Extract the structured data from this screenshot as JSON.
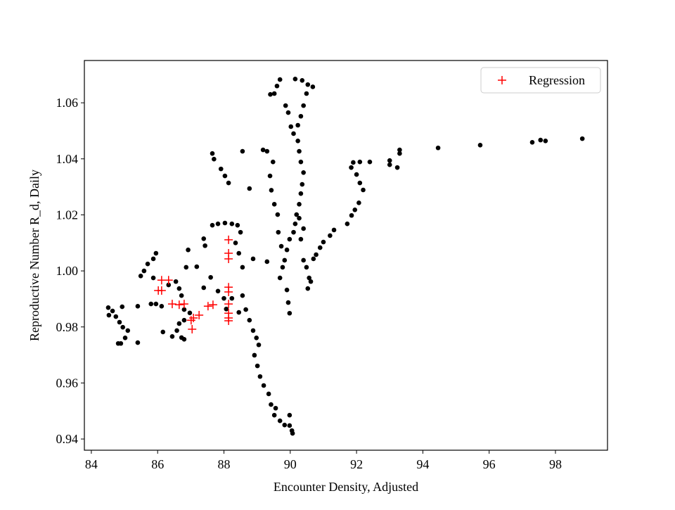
{
  "chart_data": {
    "type": "scatter",
    "xlabel": "Encounter Density, Adjusted",
    "ylabel": "Reproductive Number R_d, Daily",
    "xlim": [
      83.79,
      99.57
    ],
    "ylim": [
      0.936,
      1.0751
    ],
    "xticks": [
      84,
      86,
      88,
      90,
      92,
      94,
      96,
      98
    ],
    "yticks": [
      0.94,
      0.96,
      0.98,
      {
        "value": 1,
        "label": "1.00"
      },
      1.02,
      1.04,
      1.06
    ],
    "legend": "upper right",
    "series": [
      {
        "color": "#000000",
        "marker": "dot",
        "x": [
          98.81,
          97.7,
          97.55,
          97.3,
          95.73,
          94.46,
          93.3,
          93.3,
          93.23,
          93.0,
          93.0,
          92.4,
          92.1,
          91.9,
          91.84,
          92.0,
          92.1,
          92.2,
          92.07,
          91.95,
          91.85,
          91.72,
          91.32,
          91.2,
          91.0,
          90.9,
          90.78,
          90.7,
          89.69,
          89.6,
          89.52,
          89.4,
          89.86,
          89.94,
          90.02,
          90.1,
          90.23,
          90.27,
          90.32,
          90.4,
          90.36,
          90.32,
          90.27,
          90.19,
          90.15,
          90.1,
          90.15,
          90.36,
          90.53,
          90.68,
          90.49,
          90.4,
          90.32,
          90.23,
          89.98,
          89.9,
          89.83,
          89.77,
          89.69,
          89.9,
          89.94,
          89.98,
          89.62,
          89.52,
          89.43,
          89.39,
          89.48,
          89.3,
          89.18,
          89.64,
          89.73,
          90.4,
          90.49,
          90.57,
          90.53,
          90.62,
          90.32,
          90.4,
          90.27,
          88.56,
          88.66,
          88.77,
          88.88,
          88.98,
          89.05,
          88.92,
          89.01,
          89.09,
          89.2,
          89.35,
          89.42,
          89.56,
          89.52,
          89.69,
          89.83,
          89.98,
          90.05,
          90.07,
          89.98,
          87.65,
          87.7,
          87.91,
          88.03,
          88.14,
          88.56,
          88.77,
          87.65,
          87.82,
          88.03,
          88.24,
          88.41,
          88.5,
          88.35,
          88.45,
          88.56,
          87.39,
          87.43,
          87.18,
          87.39,
          87.6,
          87.82,
          88.0,
          88.07,
          88.24,
          88.45,
          88.88,
          89.3,
          85.95,
          85.87,
          85.7,
          85.59,
          85.49,
          85.87,
          85.8,
          85.95,
          86.12,
          86.33,
          86.55,
          86.65,
          86.86,
          86.92,
          86.72,
          86.8,
          86.65,
          86.58,
          86.72,
          86.8,
          86.44,
          86.16,
          86.97,
          86.8,
          84.51,
          84.64,
          84.74,
          84.53,
          84.85,
          84.95,
          85.1,
          85.02,
          84.89,
          84.81,
          85.4,
          85.4,
          84.93
        ],
        "values": [
          1.0472,
          1.0464,
          1.0467,
          1.0459,
          1.0449,
          1.0439,
          1.0432,
          1.0419,
          1.0369,
          1.0394,
          1.0379,
          1.0389,
          1.0389,
          1.0387,
          1.0369,
          1.0344,
          1.0314,
          1.0289,
          1.0243,
          1.0218,
          1.0198,
          1.0168,
          1.0146,
          1.0126,
          1.0103,
          1.0083,
          1.0058,
          1.0043,
          1.0683,
          1.066,
          1.0633,
          1.063,
          1.059,
          1.0565,
          1.0515,
          1.049,
          1.0464,
          1.0427,
          1.0389,
          1.0351,
          1.0309,
          1.0276,
          1.0238,
          1.0201,
          1.0168,
          1.0138,
          1.0685,
          1.068,
          1.0665,
          1.0657,
          1.0633,
          1.059,
          1.0552,
          1.052,
          1.0113,
          1.0075,
          1.0038,
          1.0013,
          0.9975,
          0.9932,
          0.9887,
          0.9849,
          1.0201,
          1.0238,
          1.0288,
          1.0339,
          1.0389,
          1.0427,
          1.0432,
          1.0138,
          1.0088,
          1.0038,
          1.0013,
          0.9975,
          0.9937,
          0.9962,
          1.0113,
          1.0151,
          1.0188,
          0.9912,
          0.9862,
          0.9824,
          0.9787,
          0.9761,
          0.9736,
          0.9699,
          0.9661,
          0.9623,
          0.9591,
          0.9561,
          0.9523,
          0.951,
          0.9485,
          0.9465,
          0.945,
          0.9448,
          0.943,
          0.942,
          0.9485,
          1.0419,
          1.0399,
          1.0364,
          1.0339,
          1.0314,
          1.0427,
          1.0294,
          1.0163,
          1.0168,
          1.0171,
          1.0168,
          1.0163,
          1.0138,
          1.01,
          1.0063,
          1.0013,
          1.0115,
          1.009,
          1.0015,
          0.994,
          0.9977,
          0.9928,
          0.9902,
          0.9864,
          0.9902,
          0.9852,
          1.0043,
          1.0033,
          1.0063,
          1.0043,
          1.0025,
          1.0,
          0.9982,
          0.9975,
          0.9882,
          0.9882,
          0.9874,
          0.995,
          0.9962,
          0.9937,
          1.0013,
          1.0075,
          0.9912,
          0.9862,
          0.9812,
          0.9787,
          0.9762,
          0.9756,
          0.9766,
          0.9782,
          0.985,
          0.9824,
          0.9869,
          0.9857,
          0.9837,
          0.9842,
          0.9817,
          0.9799,
          0.9787,
          0.9761,
          0.9741,
          0.9741,
          0.9744,
          0.9874,
          0.9872
        ]
      },
      {
        "name": "Regression",
        "color": "#ff0000",
        "marker": "plus",
        "x": [
          88.14,
          88.14,
          88.14,
          88.14,
          88.14,
          88.14,
          88.14,
          88.14,
          88.14,
          86.12,
          86.33,
          86.02,
          86.12,
          86.44,
          86.65,
          86.8,
          87.08,
          87.01,
          87.25,
          87.04,
          87.52,
          87.67
        ],
        "values": [
          1.0111,
          1.0063,
          1.0043,
          0.9942,
          0.9925,
          0.9882,
          0.9849,
          0.9832,
          0.9822,
          0.9967,
          0.9967,
          0.993,
          0.993,
          0.9882,
          0.9879,
          0.9882,
          0.9832,
          0.9824,
          0.9842,
          0.9792,
          0.9874,
          0.9879
        ]
      }
    ]
  }
}
